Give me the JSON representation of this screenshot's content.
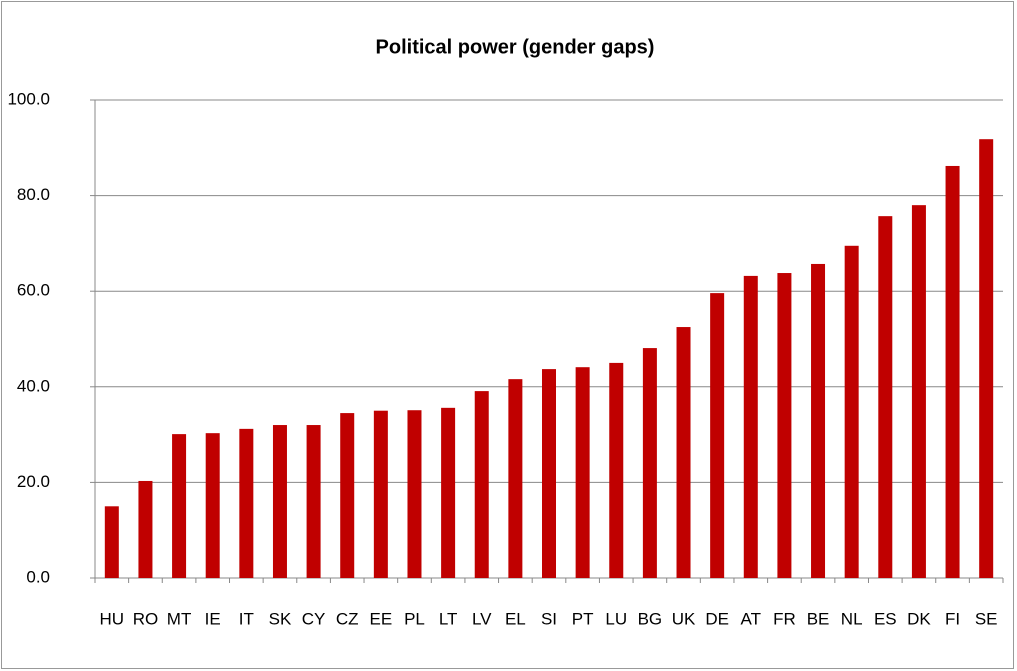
{
  "chart_data": {
    "type": "bar",
    "title": "Political power (gender gaps)",
    "categories": [
      "HU",
      "RO",
      "MT",
      "IE",
      "IT",
      "SK",
      "CY",
      "CZ",
      "EE",
      "PL",
      "LT",
      "LV",
      "EL",
      "SI",
      "PT",
      "LU",
      "BG",
      "UK",
      "DE",
      "AT",
      "FR",
      "BE",
      "NL",
      "ES",
      "DK",
      "FI",
      "SE"
    ],
    "values": [
      15,
      20.3,
      30.1,
      30.3,
      31.2,
      32,
      32,
      34.5,
      35,
      35.1,
      35.6,
      39.1,
      41.6,
      43.7,
      44.1,
      45,
      48.1,
      52.5,
      59.6,
      63.2,
      63.8,
      65.7,
      69.5,
      75.7,
      78,
      86.2,
      91.8
    ],
    "color": "#c00000",
    "ylim": [
      0,
      100
    ],
    "yticks": [
      {
        "value": 0,
        "label": "0.0"
      },
      {
        "value": 20,
        "label": "20.0"
      },
      {
        "value": 40,
        "label": "40.0"
      },
      {
        "value": 60,
        "label": "60.0"
      },
      {
        "value": 80,
        "label": "80.0"
      },
      {
        "value": 100,
        "label": "100.0"
      }
    ],
    "grid": true
  }
}
